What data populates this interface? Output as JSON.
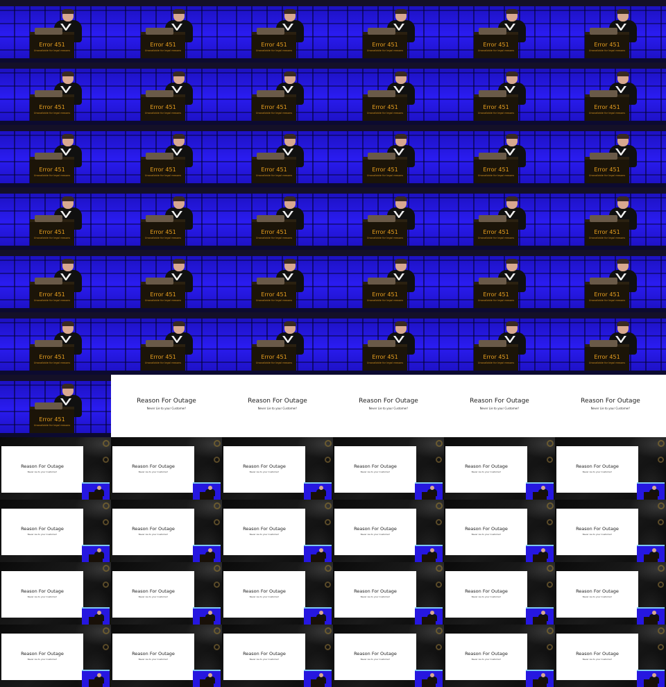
{
  "stage": {
    "podium_title": "Error 451",
    "podium_subtitle": "Unavailable for legal reasons"
  },
  "slide": {
    "title": "Reason For Outage",
    "subtitle": "Never Lie to your Customer!"
  },
  "grid": {
    "columns": 6,
    "rows": 11,
    "stage_tile_count": 37,
    "slide_tile_count": 5,
    "composite_tile_count": 24
  },
  "colors": {
    "stage_blue": "#1d10d8",
    "podium_text": "#e8a020",
    "slide_bg": "#ffffff"
  }
}
